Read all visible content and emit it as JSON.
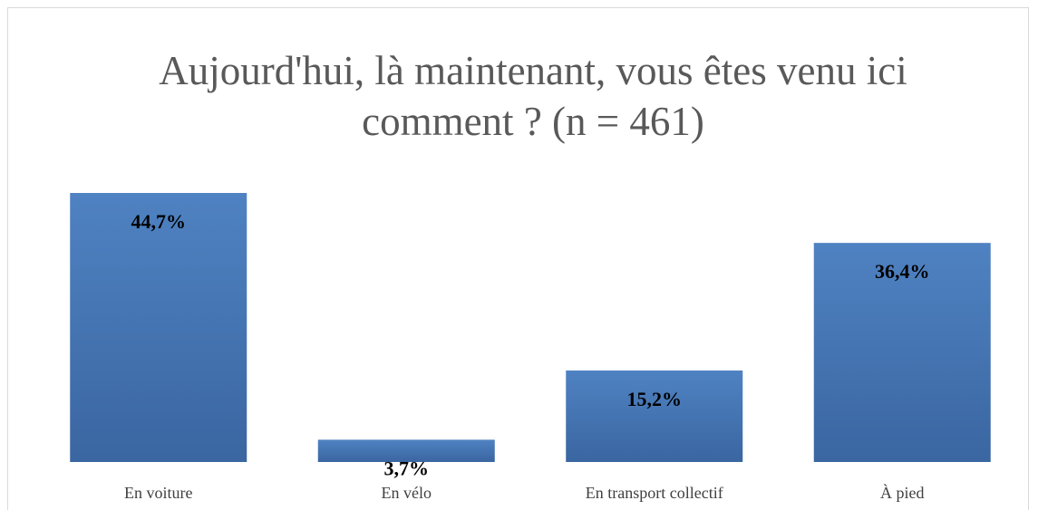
{
  "chart_data": {
    "type": "bar",
    "title": "Aujourd'hui, là maintenant, vous êtes venu ici comment ? (n = 461)",
    "categories": [
      "En voiture",
      "En vélo",
      "En transport collectif",
      "À pied"
    ],
    "values": [
      44.7,
      3.7,
      15.2,
      36.4
    ],
    "value_labels": [
      "44,7%",
      "3,7%",
      "15,2%",
      "36,4%"
    ],
    "color": "#4a7ab8"
  }
}
